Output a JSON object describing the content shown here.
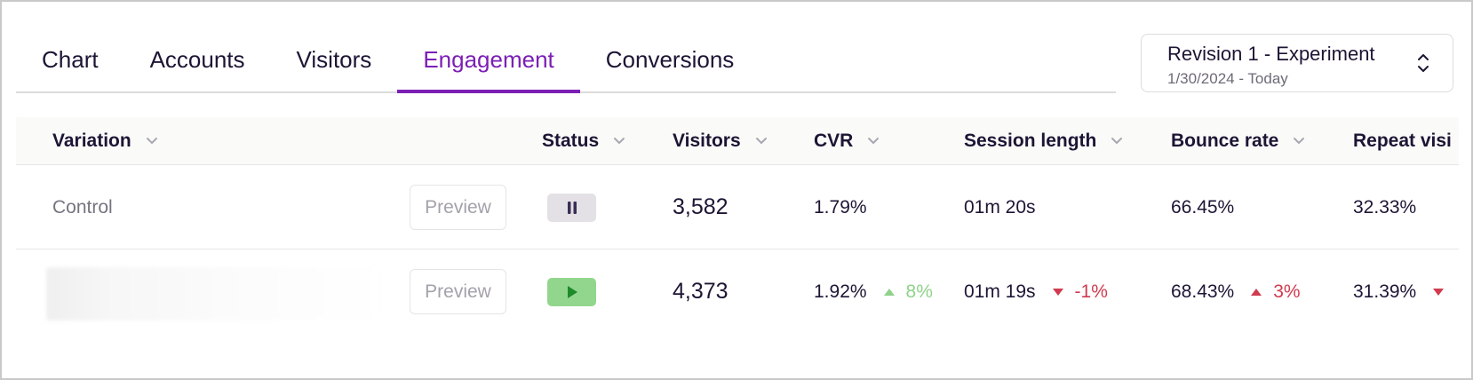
{
  "tabs": [
    {
      "label": "Chart",
      "active": false
    },
    {
      "label": "Accounts",
      "active": false
    },
    {
      "label": "Visitors",
      "active": false
    },
    {
      "label": "Engagement",
      "active": true
    },
    {
      "label": "Conversions",
      "active": false
    }
  ],
  "revision": {
    "title": "Revision 1 - Experiment",
    "date_range": "1/30/2024 - Today"
  },
  "table": {
    "columns": [
      "Variation",
      "Status",
      "Visitors",
      "CVR",
      "Session length",
      "Bounce rate",
      "Repeat visi"
    ],
    "preview_label": "Preview",
    "rows": [
      {
        "variation": "Control",
        "status": "paused",
        "visitors": "3,582",
        "cvr": "1.79%",
        "session_length": "01m 20s",
        "bounce_rate": "66.45%",
        "repeat_visits": "32.33%"
      },
      {
        "variation": "",
        "status": "running",
        "visitors": "4,373",
        "cvr": "1.92%",
        "cvr_delta": "8%",
        "session_length": "01m 19s",
        "session_delta": "-1%",
        "bounce_rate": "68.43%",
        "bounce_delta": "3%",
        "repeat_visits": "31.39%"
      }
    ]
  },
  "colors": {
    "accent": "#7b1fb5",
    "positive": "#8fd28a",
    "negative": "#d13b4f",
    "running": "#92d68d",
    "paused": "#e3e1e6"
  }
}
